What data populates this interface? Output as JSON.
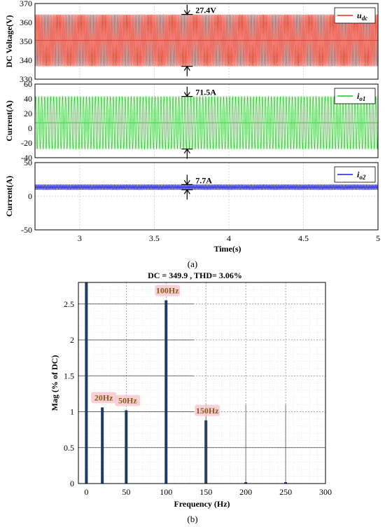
{
  "captions": {
    "a": "(a)",
    "b": "(b)"
  },
  "chart_data": [
    {
      "type": "line",
      "panel": "top",
      "ylabel": "DC Voltage(V)",
      "ylim": [
        330,
        370
      ],
      "yticks": [
        330,
        340,
        350,
        360,
        370
      ],
      "xlim": [
        2.7,
        5.0
      ],
      "grid": true,
      "series": [
        {
          "name": "u_dc",
          "name_base": "u",
          "name_sub": "dc",
          "color": "#e0301e",
          "mean": 350.5,
          "amplitude": 13.7,
          "frequency_hz": 100,
          "fill": "#f2a3a3"
        }
      ],
      "annotation": {
        "text": "27.4V",
        "x": 3.72,
        "y_top": 364.2,
        "y_bottom": 336.8
      }
    },
    {
      "type": "line",
      "panel": "middle",
      "ylabel": "Current(A)",
      "ylim": [
        -40,
        60
      ],
      "yticks": [
        -40,
        -20,
        0,
        20,
        40,
        60
      ],
      "xlim": [
        2.7,
        5.0
      ],
      "grid": true,
      "series": [
        {
          "name": "i_o1",
          "name_base": "i",
          "name_sub": "o1",
          "color": "#22c02a",
          "mean": 7.5,
          "amplitude": 35.75,
          "frequency_hz": 50,
          "fill": "#a6ec9e"
        }
      ],
      "annotation": {
        "text": "71.5A",
        "x": 3.72,
        "y_top": 43.25,
        "y_bottom": -28.25
      }
    },
    {
      "type": "line",
      "panel": "bottom",
      "ylabel": "Current(A)",
      "xlabel": "Time(s)",
      "ylim": [
        -50,
        50
      ],
      "yticks": [
        -50,
        0,
        50
      ],
      "xticks": [
        3,
        3.5,
        4,
        4.5,
        5
      ],
      "xlim": [
        2.7,
        5.0
      ],
      "grid": true,
      "series": [
        {
          "name": "i_o2",
          "name_base": "i",
          "name_sub": "o2",
          "color": "#1a1ad0",
          "mean": 13.5,
          "amplitude": 3.85,
          "frequency_hz": 100,
          "fill": "#8f8fe8"
        }
      ],
      "annotation": {
        "text": "7.7A",
        "x": 3.72,
        "y_top": 17.35,
        "y_bottom": 9.65
      }
    },
    {
      "type": "bar",
      "panel": "spectrum",
      "title": "DC = 349.9 , THD= 3.06%",
      "xlabel": "Frequency (Hz)",
      "ylabel": "Mag (% of DC)",
      "xlim": [
        -10,
        300
      ],
      "ylim": [
        0,
        2.8
      ],
      "xticks": [
        0,
        50,
        100,
        150,
        200,
        250,
        300
      ],
      "yticks": [
        0,
        0.5,
        1,
        1.5,
        2,
        2.5
      ],
      "grid": true,
      "bars": [
        {
          "x": 0,
          "value": 2.8
        },
        {
          "x": 20,
          "value": 1.06
        },
        {
          "x": 50,
          "value": 1.02
        },
        {
          "x": 100,
          "value": 2.55
        },
        {
          "x": 150,
          "value": 0.88
        },
        {
          "x": 200,
          "value": 0.02
        },
        {
          "x": 250,
          "value": 0.02
        }
      ],
      "labels": [
        {
          "text": "20Hz",
          "x": 20,
          "y": 1.06
        },
        {
          "text": "50Hz",
          "x": 50,
          "y": 1.02
        },
        {
          "text": "100Hz",
          "x": 100,
          "y": 2.55
        },
        {
          "text": "150Hz",
          "x": 150,
          "y": 0.88
        }
      ],
      "bar_color": "#1f3b63"
    }
  ]
}
